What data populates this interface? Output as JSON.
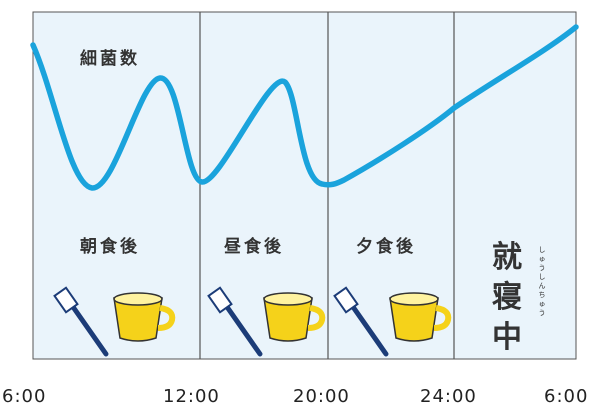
{
  "bacteria_label": "細菌数",
  "periods": [
    {
      "label": "朝食後",
      "icons": [
        "toothbrush-icon",
        "cup-icon"
      ]
    },
    {
      "label": "昼食後",
      "icons": [
        "toothbrush-icon",
        "cup-icon"
      ]
    },
    {
      "label": "夕食後",
      "icons": [
        "toothbrush-icon",
        "cup-icon"
      ]
    }
  ],
  "sleep": {
    "chars": [
      "就",
      "寝",
      "中"
    ],
    "reading": "しゅうしんちゅう"
  },
  "time_ticks": [
    "6:00",
    "12:00",
    "20:00",
    "24:00",
    "6:00"
  ],
  "colors": {
    "curve": "#1aa3dc",
    "panel_fill": "#eaf4fb",
    "divider": "#555555",
    "cup": "#f5d21a",
    "toothbrush": "#1c3c78"
  }
}
